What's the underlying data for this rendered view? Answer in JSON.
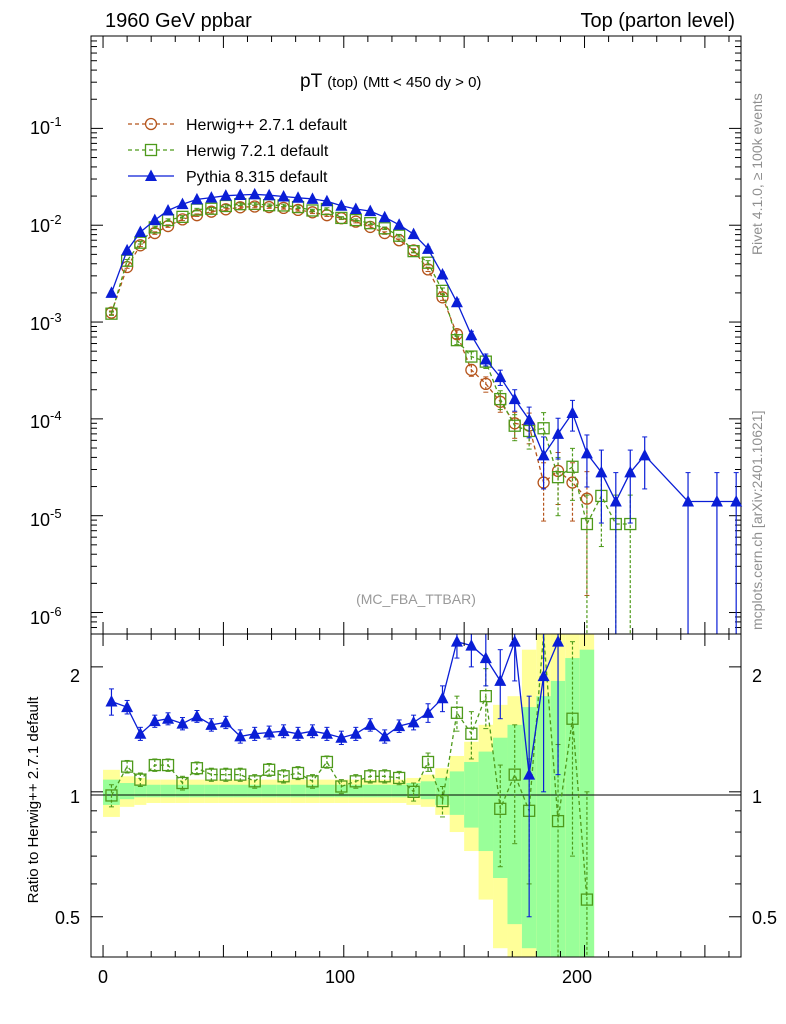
{
  "header": {
    "left": "1960 GeV ppbar",
    "right": "Top (parton level)"
  },
  "side_labels": {
    "rivet": "Rivet 4.1.0, ≥ 100k events",
    "source": "mcplots.cern.ch [arXiv:2401.10621]"
  },
  "chart_data": [
    {
      "type": "line",
      "title": "pT",
      "title_sub": "(top)",
      "title_cond": "(Mtt < 450 dy > 0)",
      "watermark": "(MC_FBA_TTBAR)",
      "xlim": [
        -5,
        265
      ],
      "ylim": [
        6e-07,
        0.9
      ],
      "yscale": "log",
      "ytick_labels": [
        {
          "base": "10",
          "exp": "-6",
          "value": 1e-06
        },
        {
          "base": "10",
          "exp": "-5",
          "value": 1e-05
        },
        {
          "base": "10",
          "exp": "-4",
          "value": 0.0001
        },
        {
          "base": "10",
          "exp": "-3",
          "value": 0.001
        },
        {
          "base": "10",
          "exp": "-2",
          "value": 0.01
        },
        {
          "base": "10",
          "exp": "-1",
          "value": 0.1
        }
      ],
      "legend_position": "top-left",
      "series": [
        {
          "name": "Herwig++ 2.7.1 default",
          "color": "#b5541b",
          "marker": "circle",
          "line": "dashed",
          "x": [
            3.5,
            10,
            15.5,
            21.5,
            27,
            33,
            39,
            45,
            51,
            57,
            63,
            69,
            75,
            81,
            87,
            93,
            99,
            105,
            111,
            117,
            123,
            129,
            135,
            141,
            147,
            153,
            159,
            165,
            171,
            177,
            183,
            189,
            195,
            201
          ],
          "y": [
            0.00125,
            0.0037,
            0.0062,
            0.0083,
            0.0098,
            0.0115,
            0.0127,
            0.0138,
            0.0146,
            0.0153,
            0.0156,
            0.0154,
            0.0151,
            0.0144,
            0.0136,
            0.0127,
            0.0118,
            0.0109,
            0.0096,
            0.0083,
            0.007,
            0.0055,
            0.0035,
            0.0018,
            0.00075,
            0.00032,
            0.00023,
            0.00015,
            9e-05,
            8.5e-05,
            2.2e-05,
            2.9e-05,
            2.2e-05,
            1.5e-05
          ],
          "yerr_frac": [
            0.04,
            0.03,
            0.03,
            0.03,
            0.03,
            0.03,
            0.03,
            0.03,
            0.03,
            0.03,
            0.03,
            0.03,
            0.03,
            0.03,
            0.03,
            0.03,
            0.03,
            0.03,
            0.03,
            0.03,
            0.03,
            0.04,
            0.05,
            0.07,
            0.1,
            0.14,
            0.18,
            0.22,
            0.3,
            0.35,
            0.6,
            0.55,
            0.6,
            0.9
          ]
        },
        {
          "name": "Herwig 7.2.1 default",
          "color": "#4e9a1b",
          "marker": "square",
          "line": "dashed",
          "x": [
            3.5,
            10,
            15.5,
            21.5,
            27,
            33,
            39,
            45,
            51,
            57,
            63,
            69,
            75,
            81,
            87,
            93,
            99,
            105,
            111,
            117,
            123,
            129,
            135,
            141,
            147,
            153,
            159,
            165,
            171,
            177,
            183,
            189,
            195,
            201,
            207,
            213,
            219
          ],
          "y": [
            0.00122,
            0.0043,
            0.0066,
            0.0095,
            0.0113,
            0.0122,
            0.0145,
            0.0148,
            0.0158,
            0.0165,
            0.0166,
            0.0161,
            0.016,
            0.0154,
            0.0142,
            0.0147,
            0.0119,
            0.0113,
            0.0105,
            0.0093,
            0.0078,
            0.0054,
            0.0041,
            0.0021,
            0.00065,
            0.00044,
            0.00039,
            0.00016,
            8.5e-05,
            7.5e-05,
            8e-05,
            2.5e-05,
            3.2e-05,
            8.2e-06,
            1.6e-05,
            8.2e-06,
            8.2e-06
          ],
          "yerr_frac": [
            0.04,
            0.03,
            0.03,
            0.03,
            0.03,
            0.03,
            0.03,
            0.03,
            0.03,
            0.03,
            0.03,
            0.03,
            0.03,
            0.03,
            0.03,
            0.03,
            0.03,
            0.03,
            0.03,
            0.03,
            0.03,
            0.04,
            0.05,
            0.07,
            0.1,
            0.12,
            0.15,
            0.22,
            0.3,
            0.35,
            0.45,
            0.6,
            0.55,
            0.99,
            0.7,
            0.99,
            0.99
          ]
        },
        {
          "name": "Pythia 8.315 default",
          "color": "#0a1ed6",
          "marker": "triangle",
          "line": "solid",
          "x": [
            3.5,
            10,
            15.5,
            21.5,
            27,
            33,
            39,
            45,
            51,
            57,
            63,
            69,
            75,
            81,
            87,
            93,
            99,
            105,
            111,
            117,
            123,
            129,
            135,
            141,
            147,
            153,
            159,
            165,
            171,
            177,
            183,
            189,
            195,
            201,
            207,
            213,
            219,
            225,
            243,
            255,
            263
          ],
          "y": [
            0.002,
            0.0055,
            0.0085,
            0.0113,
            0.0142,
            0.0165,
            0.0185,
            0.0193,
            0.0202,
            0.0205,
            0.0208,
            0.0204,
            0.0198,
            0.0192,
            0.0187,
            0.0177,
            0.0159,
            0.0147,
            0.014,
            0.0121,
            0.0101,
            0.0081,
            0.0057,
            0.0031,
            0.0016,
            0.00073,
            0.00041,
            0.00027,
            0.00016,
            9.8e-05,
            4.2e-05,
            7e-05,
            0.000115,
            4.4e-05,
            2.8e-05,
            1.4e-05,
            2.8e-05,
            4.2e-05,
            1.4e-05,
            1.4e-05,
            1.4e-05
          ],
          "yerr_frac": [
            0.04,
            0.03,
            0.03,
            0.03,
            0.03,
            0.03,
            0.03,
            0.03,
            0.03,
            0.03,
            0.03,
            0.03,
            0.03,
            0.03,
            0.03,
            0.03,
            0.03,
            0.03,
            0.03,
            0.03,
            0.03,
            0.04,
            0.05,
            0.06,
            0.08,
            0.1,
            0.14,
            0.18,
            0.25,
            0.35,
            0.55,
            0.45,
            0.35,
            0.55,
            0.7,
            0.99,
            0.7,
            0.55,
            0.99,
            0.99,
            0.99
          ]
        }
      ]
    },
    {
      "type": "line",
      "ylabel": "Ratio to Herwig++ 2.7.1 default",
      "xlim": [
        -5,
        265
      ],
      "ylim": [
        0.4,
        2.4
      ],
      "yscale": "log",
      "xticks": [
        0,
        100,
        200
      ],
      "yticks": [
        0.5,
        1,
        2
      ],
      "ytick_labels": [
        "0.5",
        "1",
        "2"
      ],
      "reference_line": 1,
      "bands": {
        "x_edges": [
          0,
          7,
          13,
          18,
          24,
          30,
          36,
          42,
          48,
          54,
          60,
          66,
          72,
          78,
          84,
          90,
          96,
          102,
          108,
          114,
          120,
          126,
          132,
          138,
          144,
          150,
          156,
          162,
          168,
          174,
          180,
          186,
          192,
          198,
          204
        ],
        "yellow_lo": [
          0.87,
          0.92,
          0.93,
          0.94,
          0.94,
          0.94,
          0.94,
          0.94,
          0.94,
          0.94,
          0.94,
          0.94,
          0.94,
          0.94,
          0.94,
          0.94,
          0.94,
          0.94,
          0.94,
          0.94,
          0.94,
          0.93,
          0.92,
          0.88,
          0.8,
          0.72,
          0.55,
          0.42,
          0.36,
          0.36,
          0.36,
          0.36,
          0.36,
          0.36
        ],
        "yellow_hi": [
          1.13,
          1.09,
          1.08,
          1.07,
          1.07,
          1.07,
          1.07,
          1.07,
          1.07,
          1.07,
          1.07,
          1.07,
          1.07,
          1.07,
          1.07,
          1.07,
          1.07,
          1.07,
          1.07,
          1.07,
          1.07,
          1.08,
          1.1,
          1.14,
          1.22,
          1.32,
          1.45,
          1.62,
          1.7,
          2.2,
          2.4,
          2.4,
          2.4,
          2.4
        ],
        "green_lo": [
          0.93,
          0.96,
          0.97,
          0.97,
          0.97,
          0.97,
          0.97,
          0.97,
          0.97,
          0.97,
          0.97,
          0.97,
          0.97,
          0.97,
          0.97,
          0.97,
          0.97,
          0.97,
          0.97,
          0.97,
          0.97,
          0.97,
          0.96,
          0.93,
          0.88,
          0.82,
          0.72,
          0.62,
          0.48,
          0.42,
          0.38,
          0.36,
          0.36,
          0.36
        ],
        "green_hi": [
          1.07,
          1.05,
          1.04,
          1.04,
          1.04,
          1.04,
          1.04,
          1.04,
          1.04,
          1.04,
          1.04,
          1.04,
          1.04,
          1.04,
          1.04,
          1.04,
          1.04,
          1.04,
          1.04,
          1.04,
          1.04,
          1.05,
          1.06,
          1.08,
          1.12,
          1.18,
          1.25,
          1.35,
          1.45,
          1.6,
          1.7,
          1.85,
          2.1,
          2.2
        ]
      },
      "series": [
        {
          "name": "Herwig 7.2.1 default",
          "color": "#4e9a1b",
          "marker": "square",
          "x": [
            3.5,
            10,
            15.5,
            21.5,
            27,
            33,
            39,
            45,
            51,
            57,
            63,
            69,
            75,
            81,
            87,
            93,
            99,
            105,
            111,
            117,
            123,
            129,
            135,
            141,
            147,
            153,
            159,
            165,
            171,
            177,
            183,
            189,
            195,
            201
          ],
          "y": [
            0.98,
            1.15,
            1.07,
            1.16,
            1.16,
            1.05,
            1.14,
            1.1,
            1.1,
            1.1,
            1.06,
            1.13,
            1.09,
            1.11,
            1.06,
            1.18,
            1.03,
            1.06,
            1.09,
            1.09,
            1.08,
            1.0,
            1.18,
            0.95,
            1.55,
            1.38,
            1.7,
            0.91,
            1.1,
            0.9,
            3.6,
            0.85,
            1.5,
            0.55
          ],
          "yerr": [
            0.06,
            0.04,
            0.04,
            0.04,
            0.04,
            0.04,
            0.04,
            0.04,
            0.04,
            0.04,
            0.04,
            0.04,
            0.04,
            0.04,
            0.04,
            0.04,
            0.04,
            0.04,
            0.04,
            0.04,
            0.04,
            0.05,
            0.06,
            0.08,
            0.15,
            0.18,
            0.28,
            0.25,
            0.35,
            0.3,
            1.5,
            0.45,
            0.8,
            0.45
          ]
        },
        {
          "name": "Pythia 8.315 default",
          "color": "#0a1ed6",
          "marker": "triangle",
          "x": [
            3.5,
            10,
            15.5,
            21.5,
            27,
            33,
            39,
            45,
            51,
            57,
            63,
            69,
            75,
            81,
            87,
            93,
            99,
            105,
            111,
            117,
            123,
            129,
            135,
            141,
            147,
            153,
            159,
            165,
            171,
            177,
            183,
            189
          ],
          "y": [
            1.65,
            1.6,
            1.38,
            1.48,
            1.5,
            1.46,
            1.52,
            1.45,
            1.47,
            1.36,
            1.38,
            1.39,
            1.4,
            1.38,
            1.4,
            1.38,
            1.35,
            1.38,
            1.45,
            1.36,
            1.44,
            1.47,
            1.55,
            1.68,
            2.3,
            2.25,
            2.1,
            1.85,
            2.3,
            1.1,
            1.9,
            2.3
          ],
          "yerr": [
            0.12,
            0.06,
            0.05,
            0.05,
            0.05,
            0.05,
            0.05,
            0.05,
            0.05,
            0.05,
            0.05,
            0.05,
            0.05,
            0.05,
            0.05,
            0.05,
            0.05,
            0.05,
            0.05,
            0.05,
            0.05,
            0.06,
            0.08,
            0.12,
            0.2,
            0.25,
            0.3,
            0.35,
            0.45,
            0.6,
            0.9,
            1.2
          ]
        }
      ]
    }
  ]
}
